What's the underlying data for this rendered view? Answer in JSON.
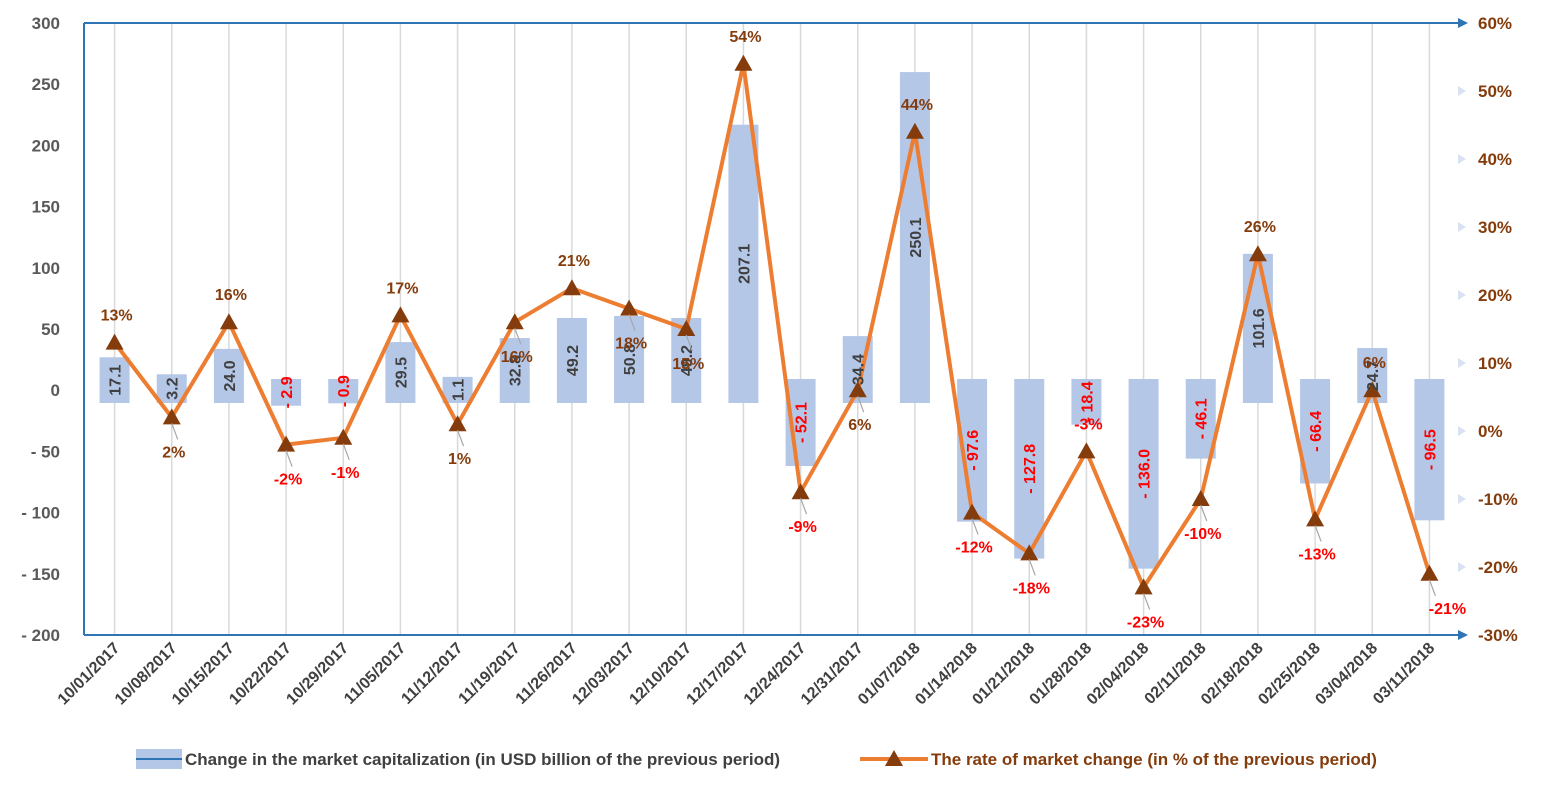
{
  "chart_data": {
    "type": "bar+line",
    "categories": [
      "10/01/2017",
      "10/08/2017",
      "10/15/2017",
      "10/22/2017",
      "10/29/2017",
      "11/05/2017",
      "11/12/2017",
      "11/19/2017",
      "11/26/2017",
      "12/03/2017",
      "12/10/2017",
      "12/17/2017",
      "12/24/2017",
      "12/31/2017",
      "01/07/2018",
      "01/14/2018",
      "01/21/2018",
      "01/28/2018",
      "02/04/2018",
      "02/11/2018",
      "02/18/2018",
      "02/25/2018",
      "03/04/2018",
      "03/11/2018"
    ],
    "series": [
      {
        "name": "Change in the market capitalization  (in USD billion of the previous period)",
        "type": "bar",
        "axis": "left",
        "color": "#B4C7E7",
        "values": [
          17.1,
          3.2,
          24.0,
          -2.9,
          -0.9,
          29.5,
          1.1,
          32.8,
          49.2,
          50.8,
          49.2,
          207.1,
          -52.1,
          34.4,
          250.1,
          -97.6,
          -127.8,
          -18.4,
          -136.0,
          -46.1,
          101.6,
          -66.4,
          24.7,
          -96.5
        ],
        "labels": [
          "17.1",
          "3.2",
          "24.0",
          "- 2.9",
          "- 0.9",
          "29.5",
          "1.1",
          "32.8",
          "49.2",
          "50.8",
          "49.2",
          "207.1",
          "- 52.1",
          "34.4",
          "250.1",
          "- 97.6",
          "- 127.8",
          "- 18.4",
          "- 136.0",
          "- 46.1",
          "101.6",
          "- 66.4",
          "24.7",
          "- 96.5"
        ]
      },
      {
        "name": "The rate of market change (in % of the previous period)",
        "type": "line",
        "axis": "right",
        "color": "#ED7D31",
        "marker_color": "#843C0C",
        "values": [
          13,
          2,
          16,
          -2,
          -1,
          17,
          1,
          16,
          21,
          18,
          15,
          54,
          -9,
          6,
          44,
          -12,
          -18,
          -3,
          -23,
          -10,
          26,
          -13,
          6,
          -21
        ],
        "labels": [
          "13%",
          "2%",
          "16%",
          "-2%",
          "-1%",
          "17%",
          "1%",
          "16%",
          "21%",
          "18%",
          "15%",
          "54%",
          "-9%",
          "6%",
          "44%",
          "-12%",
          "-18%",
          "-3%",
          "-23%",
          "-10%",
          "26%",
          "-13%",
          "6%",
          "-21%"
        ]
      }
    ],
    "y_left": {
      "lim": [
        -200,
        300
      ],
      "ticks": [
        300,
        250,
        200,
        150,
        100,
        50,
        0,
        -50,
        -100,
        -150,
        -200
      ],
      "tick_labels": [
        "300",
        "250",
        "200",
        "150",
        "100",
        "50",
        "0",
        "- 50",
        "- 100",
        "- 150",
        "- 200"
      ]
    },
    "y_right": {
      "lim": [
        -30,
        60
      ],
      "ticks": [
        60,
        50,
        40,
        30,
        20,
        10,
        0,
        -10,
        -20,
        -30
      ],
      "tick_labels": [
        "60%",
        "50%",
        "40%",
        "30%",
        "20%",
        "10%",
        "0%",
        "-10%",
        "-20%",
        "-30%"
      ]
    },
    "grid": "vertical",
    "legend": "bottom",
    "colors": {
      "positive_label": "#404040",
      "negative_label": "#FF0000",
      "positive_pct": "#843C0C",
      "axis_line": "#2E75B6"
    }
  }
}
